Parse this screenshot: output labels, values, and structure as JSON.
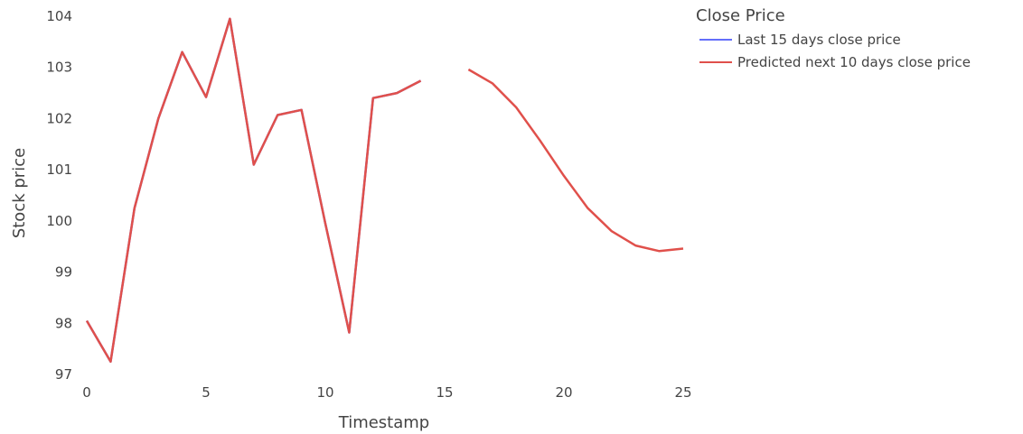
{
  "chart_data": {
    "type": "line",
    "xlabel": "Timestamp",
    "ylabel": "Stock price",
    "xlim": [
      0,
      25
    ],
    "ylim": [
      97,
      104
    ],
    "x_ticks": [
      0,
      5,
      10,
      15,
      20,
      25
    ],
    "y_ticks": [
      97,
      98,
      99,
      100,
      101,
      102,
      103,
      104
    ],
    "grid": false,
    "legend": {
      "title": "Close Price",
      "placement": "top-right"
    },
    "series": [
      {
        "name": "Last 15 days close price",
        "color": "#636efa",
        "x": [
          0,
          1,
          2,
          3,
          4,
          5,
          6,
          7,
          8,
          9,
          10,
          11,
          12,
          13,
          14
        ],
        "y": [
          98.05,
          97.25,
          100.25,
          102.0,
          103.3,
          102.42,
          103.95,
          101.1,
          102.07,
          102.17,
          99.95,
          97.82,
          102.4,
          102.5,
          102.74
        ]
      },
      {
        "name": "Predicted next 10 days close price",
        "color": "#e0504b",
        "x": [
          0,
          1,
          2,
          3,
          4,
          5,
          6,
          7,
          8,
          9,
          10,
          11,
          12,
          13,
          14,
          16,
          17,
          18,
          19,
          20,
          21,
          22,
          23,
          24,
          25
        ],
        "y": [
          98.05,
          97.25,
          100.25,
          102.0,
          103.3,
          102.42,
          103.95,
          101.1,
          102.07,
          102.17,
          99.95,
          97.82,
          102.4,
          102.5,
          102.74,
          102.96,
          102.69,
          102.22,
          101.57,
          100.88,
          100.25,
          99.8,
          99.52,
          99.41,
          99.46
        ]
      }
    ]
  }
}
